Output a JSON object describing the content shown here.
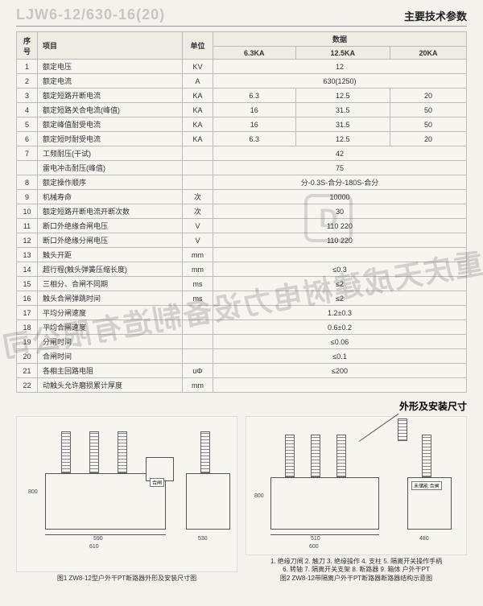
{
  "header": {
    "model_code": "LJW6-12/630-16(20)",
    "main_title": "主要技术参数"
  },
  "table": {
    "head": {
      "seq": "序号",
      "item": "项目",
      "unit": "单位",
      "param": "数据",
      "sub": [
        "6.3KA",
        "12.5KA",
        "20KA"
      ]
    },
    "rows": [
      {
        "n": "1",
        "item": "额定电压",
        "unit": "KV",
        "v": [
          "12",
          "",
          ""
        ],
        "span": 3
      },
      {
        "n": "2",
        "item": "额定电流",
        "unit": "A",
        "v": [
          "630(1250)",
          "",
          ""
        ],
        "span": 3
      },
      {
        "n": "3",
        "item": "额定短路开断电流",
        "unit": "KA",
        "v": [
          "6.3",
          "12.5",
          "20"
        ]
      },
      {
        "n": "4",
        "item": "额定短路关合电流(峰值)",
        "unit": "KA",
        "v": [
          "16",
          "31.5",
          "50"
        ]
      },
      {
        "n": "5",
        "item": "额定峰值耐受电流",
        "unit": "KA",
        "v": [
          "16",
          "31.5",
          "50"
        ]
      },
      {
        "n": "6",
        "item": "额定短时耐受电流",
        "unit": "KA",
        "v": [
          "6.3",
          "12.5",
          "20"
        ]
      },
      {
        "n": "7",
        "item": "工频耐压(干试)",
        "unit": "",
        "v": [
          "42",
          "",
          ""
        ],
        "span": 3
      },
      {
        "n": "",
        "item": "雷电冲击耐压(峰值)",
        "unit": "",
        "v": [
          "75",
          "",
          ""
        ],
        "span": 3
      },
      {
        "n": "8",
        "item": "额定操作顺序",
        "unit": "",
        "v": [
          "分-0.3S-合分-180S-合分",
          "",
          ""
        ],
        "span": 3
      },
      {
        "n": "9",
        "item": "机械寿命",
        "unit": "次",
        "v": [
          "10000",
          "",
          ""
        ],
        "span": 3
      },
      {
        "n": "10",
        "item": "额定短路开断电流开断次数",
        "unit": "次",
        "v": [
          "30",
          "",
          ""
        ],
        "span": 3
      },
      {
        "n": "11",
        "item": "断口外绝缘合闸电压",
        "unit": "V",
        "v": [
          "110 220",
          "",
          ""
        ],
        "span": 3
      },
      {
        "n": "12",
        "item": "断口外绝缘分闸电压",
        "unit": "V",
        "v": [
          "110 220",
          "",
          ""
        ],
        "span": 3
      },
      {
        "n": "13",
        "item": "触头开距",
        "unit": "mm",
        "v": [
          "",
          "",
          ""
        ],
        "span": 3
      },
      {
        "n": "14",
        "item": "超行程(触头弹簧压缩长度)",
        "unit": "mm",
        "v": [
          "≤0.3",
          "",
          ""
        ],
        "span": 3
      },
      {
        "n": "15",
        "item": "三相分、合闸不同期",
        "unit": "ms",
        "v": [
          "≤2",
          "",
          ""
        ],
        "span": 3
      },
      {
        "n": "16",
        "item": "触头合闸弹跳时间",
        "unit": "ms",
        "v": [
          "≤2",
          "",
          ""
        ],
        "span": 3
      },
      {
        "n": "17",
        "item": "平均分闸速度",
        "unit": "",
        "v": [
          "1.2±0.3",
          "",
          ""
        ],
        "span": 3
      },
      {
        "n": "18",
        "item": "平均合闸速度",
        "unit": "",
        "v": [
          "0.6±0.2",
          "",
          ""
        ],
        "span": 3
      },
      {
        "n": "19",
        "item": "分闸时间",
        "unit": "",
        "v": [
          "≤0.06",
          "",
          ""
        ],
        "span": 3
      },
      {
        "n": "20",
        "item": "合闸时间",
        "unit": "",
        "v": [
          "≤0.1",
          "",
          ""
        ],
        "span": 3
      },
      {
        "n": "21",
        "item": "各相主回路电阻",
        "unit": "uΦ",
        "v": [
          "≤200",
          "",
          ""
        ],
        "span": 3
      },
      {
        "n": "22",
        "item": "动触头允许磨损累计厚度",
        "unit": "mm",
        "v": [
          "",
          "",
          ""
        ],
        "span": 3
      }
    ]
  },
  "drawings": {
    "section_title": "外形及安装尺寸",
    "fig1": {
      "caption": "图1  ZW8-12型户外干PT断路器外形及安装尺寸图",
      "dims": {
        "w": "590",
        "h": "800",
        "tank_w": "530",
        "base": "610"
      }
    },
    "fig2": {
      "caption_line1": "1. 绝缘刀闸  2. 触刀  3. 绝缘操作  4. 支柱  5. 隔离开关操作手柄",
      "caption_line2": "6. 转轴  7. 隔离开关支架  8. 断路器  9. 箱体  户外干PT",
      "caption_line3": "图2  ZW8-12带隔离户外干PT断路器断路器结构示意图",
      "dims": {
        "w": "510",
        "h": "800",
        "d1": "480",
        "d2": "600"
      }
    }
  },
  "watermark": "重庆天成建树电力设备制造有限公司",
  "colors": {
    "page_bg": "#f5f2ed",
    "cell_bg": "#f7f5f0",
    "header_bg": "#efece6",
    "border": "#bbbbbb",
    "text": "#333333"
  }
}
